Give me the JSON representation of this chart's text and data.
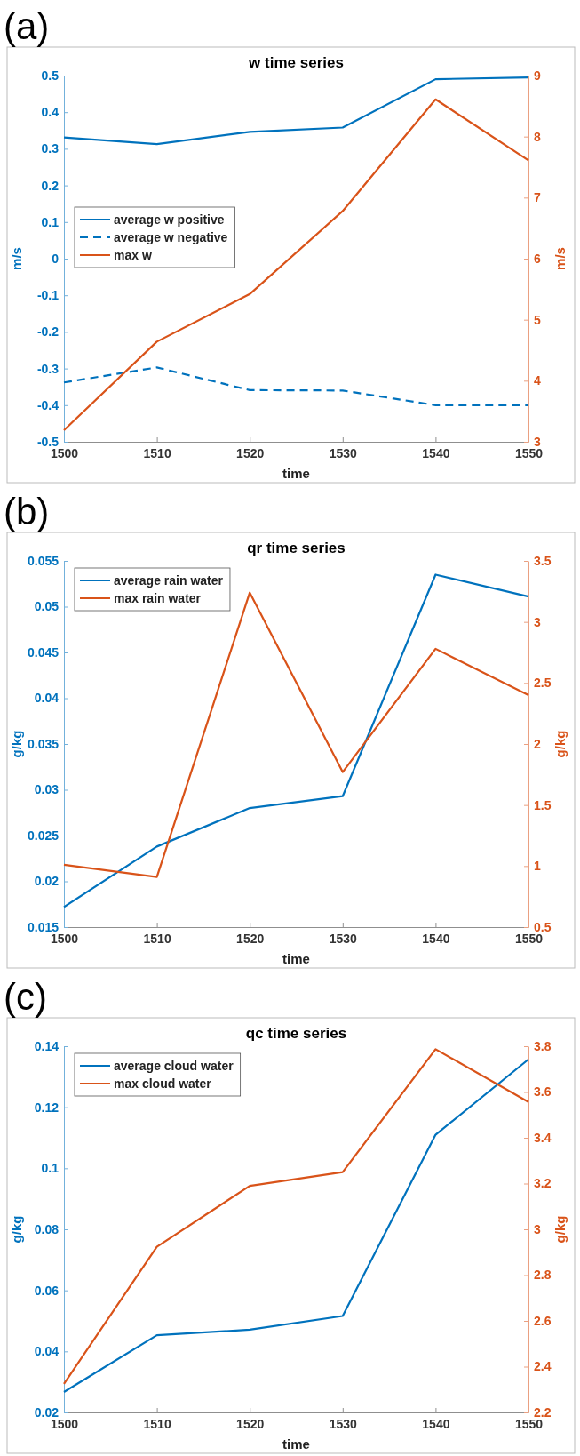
{
  "chart_data": [
    {
      "type": "line",
      "title": "w time series",
      "xlabel": "time",
      "ylabel": "m/s",
      "y2label": "m/s",
      "annotations": [
        "(a)"
      ],
      "legend": "left",
      "line_style": "solid",
      "x": [
        1500,
        1510,
        1520,
        1530,
        1540,
        1550
      ],
      "xlim": [
        1500,
        1550
      ],
      "xticks": [
        1500,
        1510,
        1520,
        1530,
        1540,
        1550
      ],
      "ylim": [
        -0.5,
        0.5
      ],
      "yticks": [
        -0.5,
        -0.4,
        -0.3,
        -0.2,
        -0.1,
        0,
        0.1,
        0.2,
        0.3,
        0.4,
        0.5
      ],
      "y2lim": [
        3,
        9
      ],
      "y2ticks": [
        3,
        4,
        5,
        6,
        7,
        8,
        9
      ],
      "series": [
        {
          "name": "average w positive",
          "color": "#0072bd",
          "values": [
            0.331,
            0.313,
            0.346,
            0.358,
            0.49,
            0.495
          ]
        },
        {
          "name": "average w negative",
          "color": "#0072bd",
          "line_style": "dashed",
          "values": [
            -0.338,
            -0.297,
            -0.359,
            -0.36,
            -0.4,
            -0.4
          ]
        },
        {
          "name": "max w",
          "color": "#d95319",
          "axis": "y2",
          "values": [
            3.19,
            4.64,
            5.42,
            6.78,
            8.61,
            7.61
          ]
        }
      ]
    },
    {
      "type": "line",
      "title": "qr time series",
      "xlabel": "time",
      "ylabel": "g/kg",
      "y2label": "g/kg",
      "annotations": [
        "(b)"
      ],
      "legend": "top left",
      "line_style": "solid",
      "x": [
        1500,
        1510,
        1520,
        1530,
        1540,
        1550
      ],
      "xlim": [
        1500,
        1550
      ],
      "xticks": [
        1500,
        1510,
        1520,
        1530,
        1540,
        1550
      ],
      "ylim": [
        0.015,
        0.055
      ],
      "yticks": [
        0.015,
        0.02,
        0.025,
        0.03,
        0.035,
        0.04,
        0.045,
        0.05,
        0.055
      ],
      "y2lim": [
        0.5,
        3.5
      ],
      "y2ticks": [
        0.5,
        1,
        1.5,
        2,
        2.5,
        3,
        3.5
      ],
      "series": [
        {
          "name": "average rain water",
          "color": "#0072bd",
          "values": [
            0.0172,
            0.0238,
            0.028,
            0.0293,
            0.0535,
            0.0511
          ]
        },
        {
          "name": "max rain water",
          "color": "#d95319",
          "axis": "y2",
          "values": [
            1.01,
            0.91,
            3.24,
            1.77,
            2.78,
            2.4
          ]
        }
      ]
    },
    {
      "type": "line",
      "title": "qc time series",
      "xlabel": "time",
      "ylabel": "g/kg",
      "y2label": "g/kg",
      "annotations": [
        "(c)"
      ],
      "legend": "top left",
      "line_style": "solid",
      "x": [
        1500,
        1510,
        1520,
        1530,
        1540,
        1550
      ],
      "xlim": [
        1500,
        1550
      ],
      "xticks": [
        1500,
        1510,
        1520,
        1530,
        1540,
        1550
      ],
      "ylim": [
        0.02,
        0.14
      ],
      "yticks": [
        0.02,
        0.04,
        0.06,
        0.08,
        0.1,
        0.12,
        0.14
      ],
      "y2lim": [
        2.2,
        3.8
      ],
      "y2ticks": [
        2.2,
        2.4,
        2.6,
        2.8,
        3,
        3.2,
        3.4,
        3.6,
        3.8
      ],
      "series": [
        {
          "name": "average cloud water",
          "color": "#0072bd",
          "values": [
            0.0267,
            0.0453,
            0.0471,
            0.0516,
            0.111,
            0.1357
          ]
        },
        {
          "name": "max cloud water",
          "color": "#d95319",
          "axis": "y2",
          "values": [
            2.325,
            2.924,
            3.19,
            3.25,
            3.787,
            3.556
          ]
        }
      ]
    }
  ]
}
